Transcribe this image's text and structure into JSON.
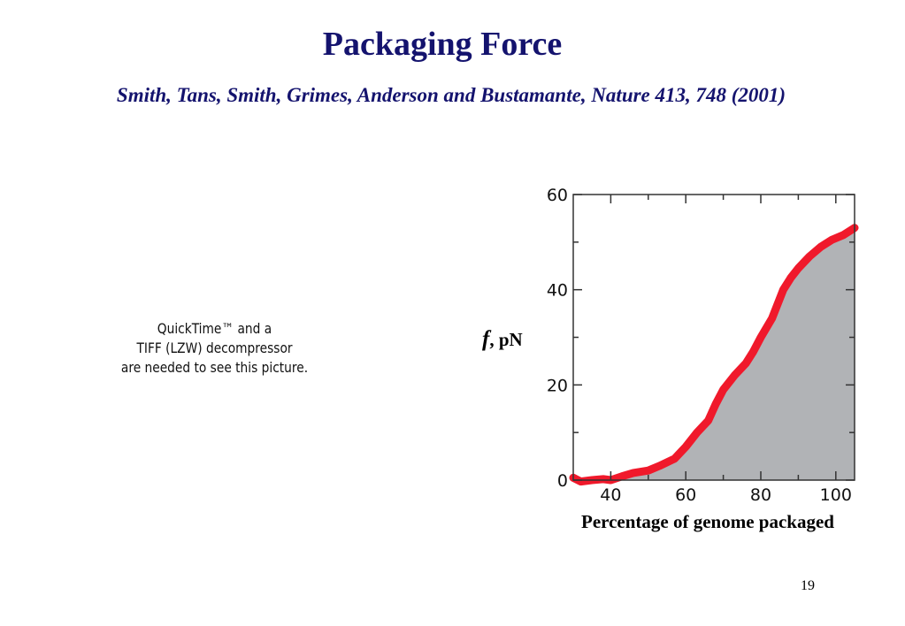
{
  "slide": {
    "title": "Packaging Force",
    "citation": "Smith, Tans, Smith, Grimes, Anderson and Bustamante, Nature 413, 748 (2001)",
    "page_number": "19"
  },
  "placeholder": {
    "lines": [
      "QuickTime™ and a",
      "TIFF (LZW) decompressor",
      "are needed to see this picture."
    ]
  },
  "chart_data": {
    "type": "area",
    "xlabel": "Percentage of genome packaged",
    "ylabel_symbol": "f",
    "ylabel_unit": ", pN",
    "xlim": [
      30,
      105
    ],
    "ylim": [
      0,
      60
    ],
    "xticks": [
      40,
      60,
      80,
      100
    ],
    "yticks": [
      0,
      20,
      40,
      60
    ],
    "grid": false,
    "colors": {
      "line": "#f0192b",
      "fill": "#b1b3b6",
      "frame": "#333333"
    },
    "series": [
      {
        "x": [
          30,
          32,
          35,
          38,
          40,
          43,
          46,
          50,
          53,
          57,
          60,
          63,
          66,
          68,
          70,
          73,
          76,
          78,
          80,
          83,
          86,
          88,
          90,
          93,
          96,
          99,
          102,
          105
        ],
        "values": [
          0.5,
          -0.3,
          0.0,
          0.2,
          0.0,
          0.8,
          1.5,
          2.0,
          3.0,
          4.5,
          7.0,
          10.0,
          12.5,
          16.0,
          19.0,
          22.0,
          24.5,
          27.0,
          30.0,
          34.0,
          40.0,
          42.5,
          44.5,
          47.0,
          49.0,
          50.5,
          51.5,
          53.0
        ]
      }
    ]
  }
}
